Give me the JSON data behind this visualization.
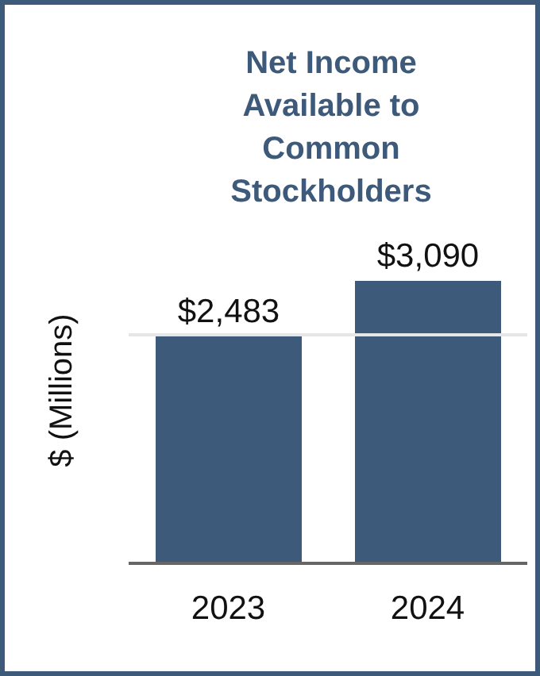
{
  "chart_data": {
    "type": "bar",
    "title": "Net Income Available to Common Stockholders",
    "ylabel": "$ (Millions)",
    "categories": [
      "2023",
      "2024"
    ],
    "values": [
      2483,
      3090
    ],
    "color": "#3e5a7a",
    "value_labels": [
      "$2,483",
      "$3,090"
    ],
    "tick_labels": "x",
    "ref_lines": [
      {
        "axis": "y",
        "value": 2500,
        "color": "#e6e6e6"
      }
    ]
  }
}
